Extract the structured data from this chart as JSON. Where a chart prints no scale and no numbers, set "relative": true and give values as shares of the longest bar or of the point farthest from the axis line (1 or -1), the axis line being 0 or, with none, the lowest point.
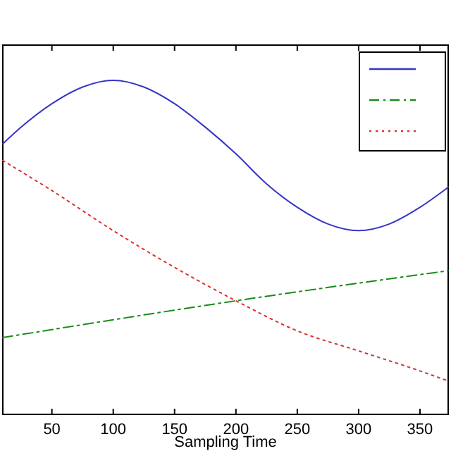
{
  "chart_data": {
    "type": "line",
    "xlabel": "Sampling Time",
    "relative": true,
    "xlim": [
      10,
      373
    ],
    "xticks": [
      50,
      100,
      150,
      200,
      250,
      300,
      350
    ],
    "grid": false,
    "marker": "none",
    "series": [
      {
        "color": "#3535c8",
        "line_style": "solid",
        "x": [
          10,
          25,
          50,
          75,
          100,
          125,
          150,
          175,
          200,
          225,
          250,
          275,
          300,
          325,
          350,
          373
        ],
        "values": [
          0.81,
          0.86,
          0.93,
          0.98,
          1,
          0.98,
          0.93,
          0.86,
          0.78,
          0.69,
          0.62,
          0.57,
          0.55,
          0.57,
          0.62,
          0.68
        ]
      },
      {
        "color": "#1a8a1a",
        "line_style": "dashdot",
        "x": [
          10,
          200,
          373
        ],
        "values": [
          0.23,
          0.34,
          0.43
        ]
      },
      {
        "color": "#e03030",
        "line_style": "dotted",
        "x": [
          10,
          50,
          100,
          150,
          200,
          250,
          300,
          350,
          373
        ],
        "values": [
          0.76,
          0.67,
          0.55,
          0.44,
          0.34,
          0.25,
          0.19,
          0.13,
          0.1
        ]
      }
    ]
  }
}
